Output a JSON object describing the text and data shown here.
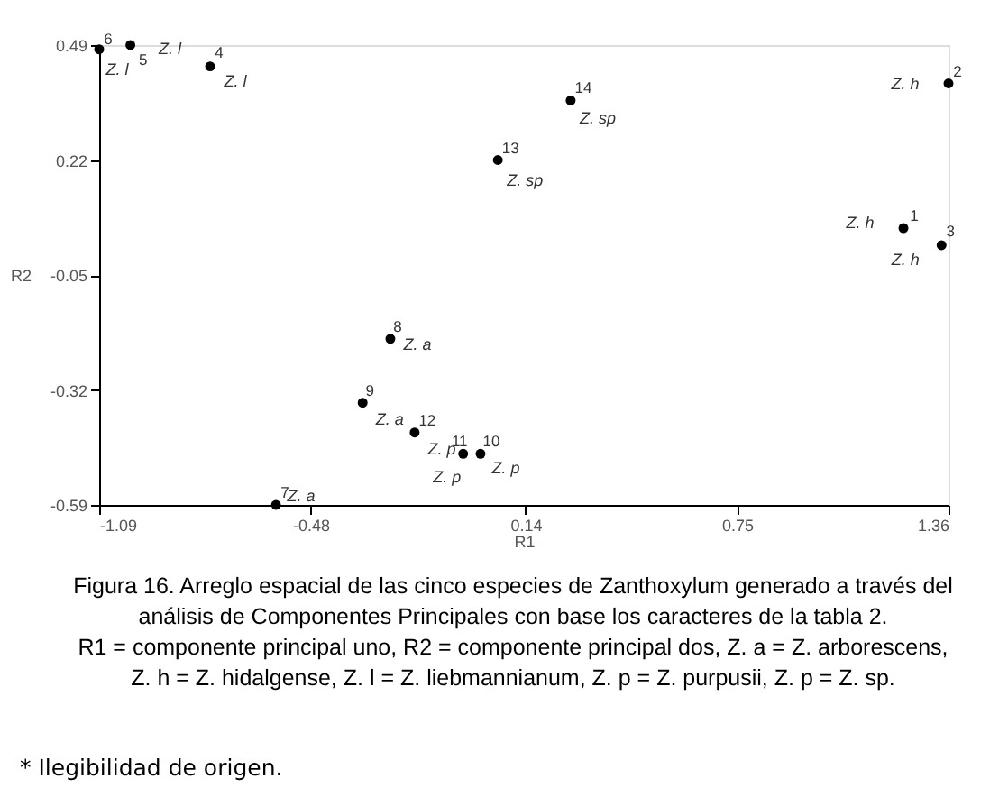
{
  "chart_data": {
    "type": "scatter",
    "xlabel": "R1",
    "ylabel": "R2",
    "x": [
      1.23,
      1.36,
      1.34,
      -0.77,
      -1.0,
      -1.09,
      -0.58,
      -0.25,
      -0.33,
      0.01,
      -0.04,
      -0.18,
      0.06,
      0.27
    ],
    "series": [
      {
        "color": "#000000",
        "values": [
          0.06,
          0.4,
          0.02,
          0.44,
          0.49,
          0.48,
          -0.59,
          -0.2,
          -0.35,
          -0.47,
          -0.47,
          -0.42,
          0.22,
          0.36
        ]
      }
    ],
    "xlim": [
      -1.09,
      1.36
    ],
    "xticks": [
      -1.09,
      -0.48,
      0.14,
      0.75,
      1.36
    ],
    "ylim": [
      -0.59,
      0.49
    ],
    "yticks": [
      -0.59,
      -0.32,
      -0.05,
      0.22,
      0.49
    ],
    "grid": false,
    "marker": "circle",
    "annotations": [
      {
        "text": "1",
        "x": 1.23,
        "y": 0.06
      },
      {
        "text": "Z. h",
        "x": 1.23,
        "y": 0.06
      },
      {
        "text": "2",
        "x": 1.36,
        "y": 0.4
      },
      {
        "text": "Z. h",
        "x": 1.36,
        "y": 0.4
      },
      {
        "text": "3",
        "x": 1.34,
        "y": 0.02
      },
      {
        "text": "Z. h",
        "x": 1.34,
        "y": 0.02
      },
      {
        "text": "4",
        "x": -0.77,
        "y": 0.44
      },
      {
        "text": "Z. l",
        "x": -0.77,
        "y": 0.44
      },
      {
        "text": "5",
        "x": -1.0,
        "y": 0.49
      },
      {
        "text": "Z. l",
        "x": -1.0,
        "y": 0.49
      },
      {
        "text": "6",
        "x": -1.09,
        "y": 0.48
      },
      {
        "text": "Z. l",
        "x": -1.09,
        "y": 0.48
      },
      {
        "text": "7",
        "x": -0.58,
        "y": -0.59
      },
      {
        "text": "Z. a",
        "x": -0.58,
        "y": -0.59
      },
      {
        "text": "8",
        "x": -0.25,
        "y": -0.2
      },
      {
        "text": "Z. a",
        "x": -0.25,
        "y": -0.2
      },
      {
        "text": "9",
        "x": -0.33,
        "y": -0.35
      },
      {
        "text": "Z. a",
        "x": -0.33,
        "y": -0.35
      },
      {
        "text": "10",
        "x": 0.01,
        "y": -0.47
      },
      {
        "text": "Z. p",
        "x": 0.01,
        "y": -0.47
      },
      {
        "text": "11",
        "x": -0.04,
        "y": -0.47
      },
      {
        "text": "Z. p",
        "x": -0.04,
        "y": -0.47
      },
      {
        "text": "12",
        "x": -0.18,
        "y": -0.42
      },
      {
        "text": "Z. p",
        "x": -0.18,
        "y": -0.42
      },
      {
        "text": "13",
        "x": 0.06,
        "y": 0.22
      },
      {
        "text": "Z. sp",
        "x": 0.06,
        "y": 0.22
      },
      {
        "text": "14",
        "x": 0.27,
        "y": 0.36
      },
      {
        "text": "Z. sp",
        "x": 0.27,
        "y": 0.36
      },
      "Figura 16. Arreglo espacial de las cinco especies de Zanthoxylum generado a través del",
      "análisis de Componentes Principales con base los caracteres de la tabla 2.",
      "R1 = componente principal uno, R2 = componente principal dos,  Z. a = Z. arborescens,",
      "Z. h = Z. hidalgense, Z. l = Z. liebmannianum, Z. p = Z. purpusii, Z. p = Z. sp.",
      "* Ilegibilidad de origen."
    ]
  }
}
